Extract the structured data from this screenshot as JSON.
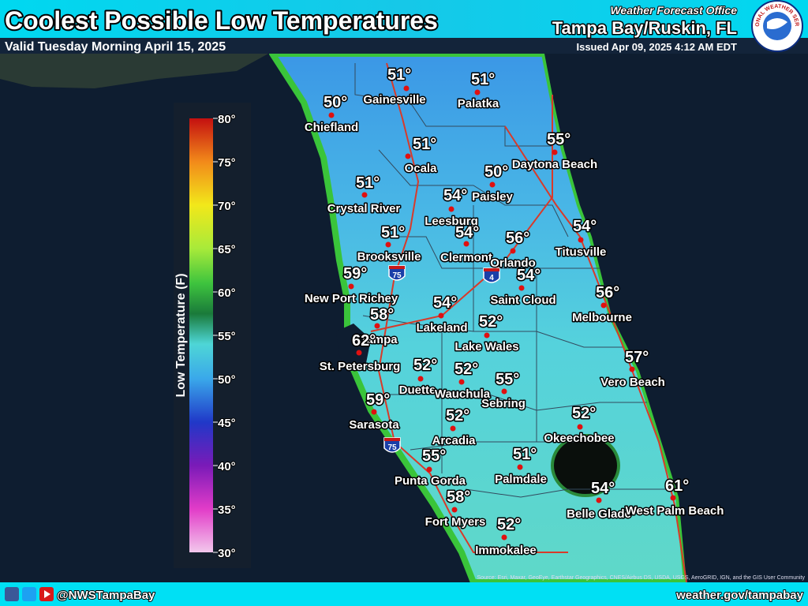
{
  "header": {
    "title": "Coolest Possible Low Temperatures",
    "valid": "Valid Tuesday Morning April 15, 2025",
    "office_label": "Weather Forecast Office",
    "office": "Tampa Bay/Ruskin, FL",
    "issued": "Issued Apr 09, 2025 4:12 AM EDT"
  },
  "logo": "NATIONAL WEATHER SERVICE",
  "legend": {
    "title": "Low Temperature (F)",
    "ticks": [
      "80°",
      "75°",
      "70°",
      "65°",
      "60°",
      "55°",
      "50°",
      "45°",
      "40°",
      "35°",
      "30°"
    ]
  },
  "cities": [
    {
      "name": "Gainesville",
      "temp": "51°"
    },
    {
      "name": "Palatka",
      "temp": "51°"
    },
    {
      "name": "Chiefland",
      "temp": "50°"
    },
    {
      "name": "Daytona Beach",
      "temp": "55°"
    },
    {
      "name": "Ocala",
      "temp": "51°"
    },
    {
      "name": "Paisley",
      "temp": "50°"
    },
    {
      "name": "Crystal River",
      "temp": "51°"
    },
    {
      "name": "Leesburg",
      "temp": "54°"
    },
    {
      "name": "Titusville",
      "temp": "54°"
    },
    {
      "name": "Clermont",
      "temp": "54°"
    },
    {
      "name": "Orlando",
      "temp": "56°"
    },
    {
      "name": "Brooksville",
      "temp": "51°"
    },
    {
      "name": "Saint Cloud",
      "temp": "54°"
    },
    {
      "name": "New Port Richey",
      "temp": "59°"
    },
    {
      "name": "Melbourne",
      "temp": "56°"
    },
    {
      "name": "Lakeland",
      "temp": "54°"
    },
    {
      "name": "Tampa",
      "temp": "58°"
    },
    {
      "name": "Lake Wales",
      "temp": "52°"
    },
    {
      "name": "St. Petersburg",
      "temp": "62°"
    },
    {
      "name": "Vero Beach",
      "temp": "57°"
    },
    {
      "name": "Duette",
      "temp": "52°"
    },
    {
      "name": "Wauchula",
      "temp": "52°"
    },
    {
      "name": "Sebring",
      "temp": "55°"
    },
    {
      "name": "Sarasota",
      "temp": "59°"
    },
    {
      "name": "Okeechobee",
      "temp": "52°"
    },
    {
      "name": "Arcadia",
      "temp": "52°"
    },
    {
      "name": "Punta Gorda",
      "temp": "55°"
    },
    {
      "name": "Palmdale",
      "temp": "51°"
    },
    {
      "name": "Belle Glade",
      "temp": "54°"
    },
    {
      "name": "West Palm Beach",
      "temp": "61°"
    },
    {
      "name": "Fort Myers",
      "temp": "58°"
    },
    {
      "name": "Immokalee",
      "temp": "52°"
    }
  ],
  "shields": [
    "75",
    "4",
    "75"
  ],
  "attribution": "Source: Esri, Maxar, GeoEye, Earthstar Geographics, CNES/Airbus DS, USDA, USGS, AeroGRID, IGN, and the GIS User Community",
  "footer": {
    "handle": "@NWSTampaBay",
    "url": "weather.gov/tampabay"
  }
}
